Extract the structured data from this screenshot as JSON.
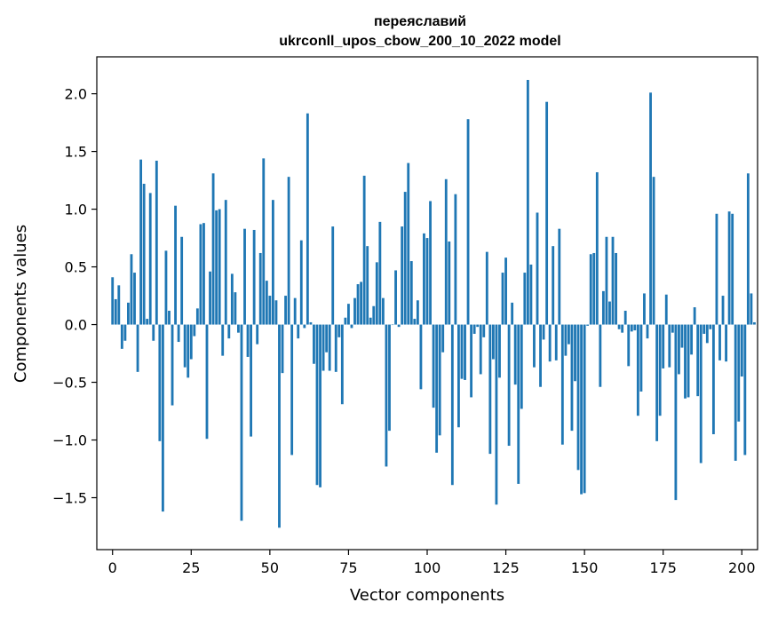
{
  "chart_data": {
    "type": "bar",
    "title": "переяславий",
    "subtitle": "ukrconll_upos_cbow_200_10_2022 model",
    "xlabel": "Vector components",
    "ylabel": "Components values",
    "xlim": [
      -5,
      205
    ],
    "ylim": [
      -1.95,
      2.32
    ],
    "xticks": [
      0,
      25,
      50,
      75,
      100,
      125,
      150,
      175,
      200
    ],
    "xtick_labels": [
      "0",
      "25",
      "50",
      "75",
      "100",
      "125",
      "150",
      "175",
      "200"
    ],
    "yticks": [
      2.0,
      1.5,
      1.0,
      0.5,
      0.0,
      -0.5,
      -1.0,
      -1.5
    ],
    "ytick_labels": [
      "2.0",
      "1.5",
      "1.0",
      "0.5",
      "0.0",
      "−0.5",
      "−1.0",
      "−1.5"
    ],
    "color": "#1f77b4",
    "values": [
      0.41,
      0.22,
      0.34,
      -0.21,
      -0.14,
      0.19,
      0.61,
      0.45,
      -0.41,
      1.43,
      1.22,
      0.05,
      1.14,
      -0.14,
      1.42,
      -1.01,
      -1.62,
      0.64,
      0.12,
      -0.7,
      1.03,
      -0.15,
      0.76,
      -0.37,
      -0.46,
      -0.3,
      -0.1,
      0.14,
      0.87,
      0.88,
      -0.99,
      0.46,
      1.31,
      0.99,
      1.0,
      -0.27,
      1.08,
      -0.12,
      0.44,
      0.28,
      -0.07,
      -1.7,
      0.83,
      -0.28,
      -0.97,
      0.82,
      -0.17,
      0.62,
      1.44,
      0.38,
      0.25,
      1.08,
      0.21,
      -1.76,
      -0.42,
      0.25,
      1.28,
      -1.13,
      0.23,
      -0.12,
      0.73,
      -0.03,
      1.83,
      0.02,
      -0.34,
      -1.39,
      -1.41,
      -0.4,
      -0.24,
      -0.4,
      0.85,
      -0.41,
      -0.11,
      -0.69,
      0.06,
      0.18,
      -0.03,
      0.23,
      0.35,
      0.37,
      1.29,
      0.68,
      0.06,
      0.16,
      0.54,
      0.89,
      0.23,
      -1.23,
      -0.92,
      0.0,
      0.47,
      -0.02,
      0.85,
      1.15,
      1.4,
      0.55,
      0.05,
      0.21,
      -0.56,
      0.79,
      0.75,
      1.07,
      -0.72,
      -1.11,
      -0.96,
      -0.24,
      1.26,
      0.72,
      -1.39,
      1.13,
      -0.89,
      -0.47,
      -0.48,
      1.78,
      -0.63,
      -0.08,
      -0.02,
      -0.43,
      -0.11,
      0.63,
      -1.12,
      -0.3,
      -1.56,
      -0.46,
      0.45,
      0.58,
      -1.05,
      0.19,
      -0.52,
      -1.38,
      -0.73,
      0.45,
      2.12,
      0.52,
      -0.37,
      0.97,
      -0.54,
      -0.13,
      1.93,
      -0.32,
      0.68,
      -0.31,
      0.83,
      -1.04,
      -0.27,
      -0.17,
      -0.92,
      -0.49,
      -1.26,
      -1.47,
      -1.46,
      -0.01,
      0.61,
      0.62,
      1.32,
      -0.54,
      0.29,
      0.76,
      0.2,
      0.76,
      0.62,
      -0.04,
      -0.07,
      0.12,
      -0.36,
      -0.06,
      -0.05,
      -0.79,
      -0.58,
      0.27,
      -0.12,
      2.01,
      1.28,
      -1.01,
      -0.79,
      -0.38,
      0.26,
      -0.37,
      -0.07,
      -1.52,
      -0.43,
      -0.2,
      -0.64,
      -0.63,
      -0.26,
      0.15,
      -0.62,
      -1.2,
      -0.08,
      -0.16,
      -0.04,
      -0.95,
      0.96,
      -0.31,
      0.25,
      -0.32,
      0.98,
      0.96,
      -1.18,
      -0.84,
      -0.45,
      -1.13,
      1.31,
      0.27,
      0.02
    ]
  }
}
